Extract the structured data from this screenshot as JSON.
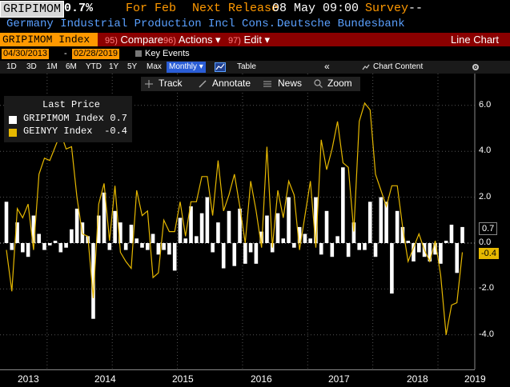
{
  "header": {
    "ticker": "GRIPIMOM",
    "value": "0.7%",
    "for_label": "For Feb",
    "next_release_label": "Next Release",
    "next_release_value": "08 May 09:00",
    "survey_label": "Survey",
    "survey_value": "--"
  },
  "subheader": {
    "description": "Germany Industrial Production Incl Cons...",
    "source": "Deutsche Bundesbank"
  },
  "toolbar": {
    "index_field": "GRIPIMOM Index",
    "compare": {
      "num": "95)",
      "label": "Compare"
    },
    "actions": {
      "num": "96)",
      "label": "Actions ▾"
    },
    "edit": {
      "num": "97)",
      "label": "Edit ▾"
    },
    "chart_type": "Line Chart"
  },
  "date_range": {
    "start": "04/30/2013",
    "end": "02/28/2019",
    "key_events": "Key Events"
  },
  "periods": [
    "1D",
    "3D",
    "1M",
    "6M",
    "YTD",
    "1Y",
    "5Y",
    "Max"
  ],
  "frequency": "Monthly ▾",
  "table_label": "Table",
  "collapse_icon": "«",
  "chart_content": "Chart Content",
  "settings_icon": "gear-icon",
  "tools": {
    "track": "Track",
    "annotate": "Annotate",
    "news": "News",
    "zoom": "Zoom"
  },
  "legend": {
    "title": "Last Price",
    "items": [
      {
        "name": "GRIPIMOM Index",
        "value": "0.7",
        "color": "#ffffff"
      },
      {
        "name": "GEINYY Index",
        "value": "-0.4",
        "color": "#e6b800"
      }
    ]
  },
  "last_tags": [
    {
      "label": "0.7",
      "bg": "#000000",
      "fg": "#ffffff"
    },
    {
      "label": "-0.4",
      "bg": "#e6b800",
      "fg": "#000000"
    }
  ],
  "chart_data": {
    "type": "bar",
    "ylim": [
      -5.5,
      6.5
    ],
    "yticks": [
      6.0,
      4.0,
      2.0,
      0.0,
      -2.0,
      -4.0
    ],
    "year_labels": [
      "2013",
      "2014",
      "2015",
      "2016",
      "2017",
      "2018",
      "2019"
    ],
    "series": [
      {
        "name": "GRIPIMOM Index",
        "type": "bar",
        "color": "#ffffff",
        "values": [
          1.8,
          -0.3,
          0.9,
          -0.4,
          -0.6,
          1.2,
          0.4,
          -0.3,
          -0.1,
          0.1,
          -0.4,
          -0.2,
          0.6,
          1.5,
          0.9,
          0.3,
          -3.3,
          1.2,
          2.2,
          -0.3,
          1.4,
          0.9,
          -0.3,
          0.8,
          0.2,
          -0.2,
          -0.3,
          0.4,
          -0.5,
          -0.3,
          -0.5,
          -1.2,
          1.1,
          0.2,
          1.6,
          0.3,
          1.3,
          2.0,
          -0.4,
          0.9,
          -1.1,
          1.4,
          -1.0,
          1.5,
          -0.9,
          -0.4,
          -0.9,
          0.5,
          1.2,
          -0.4,
          1.3,
          0.2,
          2.0,
          -0.2,
          0.7,
          0.4,
          0.2,
          2.0,
          -0.5,
          1.4,
          -0.6,
          0.3,
          3.3,
          -0.6,
          0.9,
          -0.3,
          -0.3,
          1.8,
          -0.6,
          2.0,
          1.8,
          -2.2,
          1.4,
          0.7,
          0.1,
          -0.8,
          -0.4,
          -0.6,
          -0.8,
          -0.5,
          -0.9,
          0.1,
          0.8,
          -1.3,
          0.7
        ]
      },
      {
        "name": "GEINYY Index",
        "type": "line",
        "color": "#e6b800",
        "values": [
          -0.3,
          -2.1,
          1.5,
          1.1,
          1.7,
          -0.3,
          3.0,
          3.7,
          3.6,
          4.2,
          4.8,
          4.1,
          4.2,
          2.0,
          0.4,
          0.3,
          -2.4,
          1.7,
          2.6,
          0.1,
          2.5,
          -0.4,
          -0.8,
          -1.1,
          2.3,
          1.2,
          1.4,
          -1.5,
          -1.3,
          1.0,
          0.5,
          0.5,
          1.8,
          0.3,
          1.8,
          1.8,
          2.9,
          2.9,
          1.2,
          3.6,
          1.4,
          2.1,
          3.0,
          1.6,
          0.0,
          2.7,
          1.4,
          -0.2,
          4.2,
          -0.2,
          2.3,
          1.1,
          2.7,
          2.1,
          -0.3,
          1.2,
          2.7,
          -0.2,
          4.5,
          3.2,
          4.1,
          5.3,
          3.5,
          3.3,
          0.5,
          5.3,
          6.1,
          5.8,
          3.0,
          2.3,
          1.6,
          2.5,
          2.5,
          0.7,
          -0.8,
          -0.2,
          0.4,
          -0.3,
          -0.8,
          0.1,
          -1.4,
          -4.0,
          -2.7,
          -2.6,
          -0.4
        ]
      }
    ]
  }
}
